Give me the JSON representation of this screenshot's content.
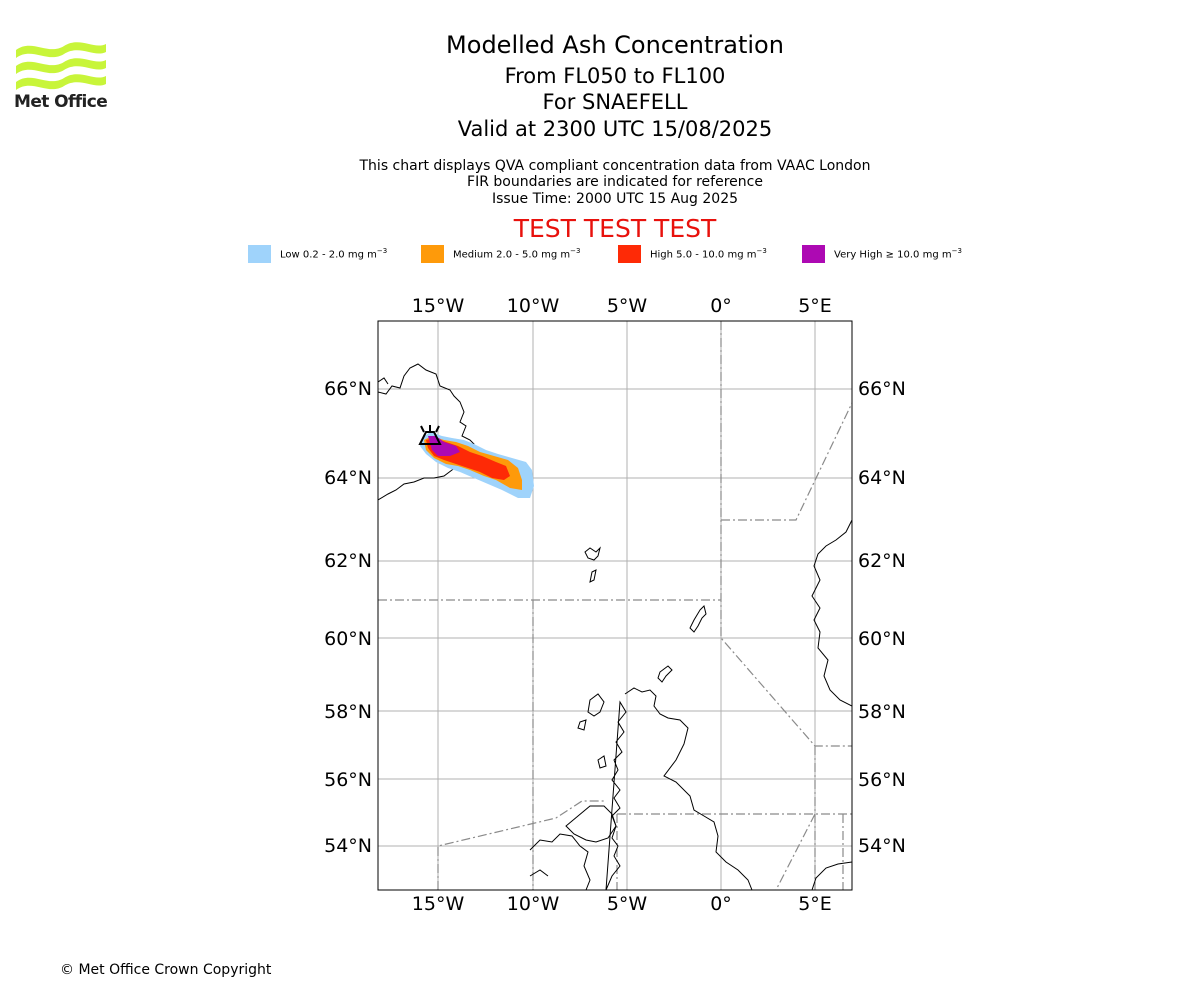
{
  "header": {
    "logo_text": "Met Office",
    "title": "Modelled Ash Concentration",
    "levels": "From FL050 to FL100",
    "volcano": "For SNAEFELL",
    "valid": "Valid at 2300 UTC 15/08/2025",
    "note1": "This chart displays QVA compliant concentration data from VAAC London",
    "note2": "FIR boundaries are indicated for reference",
    "issue": "Issue Time: 2000 UTC 15 Aug 2025",
    "test_banner": "TEST TEST TEST"
  },
  "legend": [
    {
      "label": "Low 0.2 - 2.0 mg m",
      "exp": "−3",
      "color": "#9fd3fb"
    },
    {
      "label": "Medium 2.0 - 5.0 mg m",
      "exp": "−3",
      "color": "#fe9a0a"
    },
    {
      "label": "High 5.0 - 10.0 mg m",
      "exp": "−3",
      "color": "#fe2a06"
    },
    {
      "label": "Very High  ≥  10.0 mg m",
      "exp": "−3",
      "color": "#ad09b3"
    }
  ],
  "map": {
    "lon_ticks": [
      {
        "lon": -15,
        "label": "15°W"
      },
      {
        "lon": -10,
        "label": "10°W"
      },
      {
        "lon": -5,
        "label": "5°W"
      },
      {
        "lon": 0,
        "label": "0°"
      },
      {
        "lon": 5,
        "label": "5°E"
      }
    ],
    "lat_ticks": [
      {
        "lat": 66,
        "label": "66°N"
      },
      {
        "lat": 64,
        "label": "64°N"
      },
      {
        "lat": 62,
        "label": "62°N"
      },
      {
        "lat": 60,
        "label": "60°N"
      },
      {
        "lat": 58,
        "label": "58°N"
      },
      {
        "lat": 56,
        "label": "56°N"
      },
      {
        "lat": 54,
        "label": "54°N"
      }
    ],
    "extent": {
      "lon_min": -18.2,
      "lon_max": 7.0,
      "lat_min": 52.9,
      "lat_max": 67.5
    },
    "grid": true,
    "volcano_name": "SNAEFELL"
  },
  "footer": {
    "copyright": "© Met Office Crown Copyright"
  }
}
